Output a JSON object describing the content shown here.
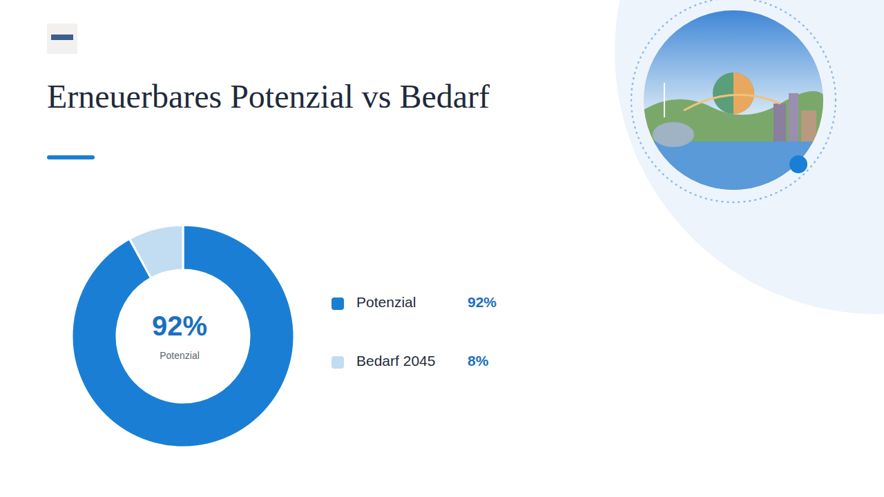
{
  "chart_data": {
    "type": "pie",
    "title": "Erneuerbares Potenzial vs Bedarf",
    "categories": [
      "Potenzial",
      "Bedarf 2045"
    ],
    "values": [
      92,
      8
    ],
    "value_labels": [
      "92%",
      "8%"
    ],
    "colors": [
      "#1a7fd4",
      "#c2dcf2"
    ],
    "legend": "right"
  }
}
